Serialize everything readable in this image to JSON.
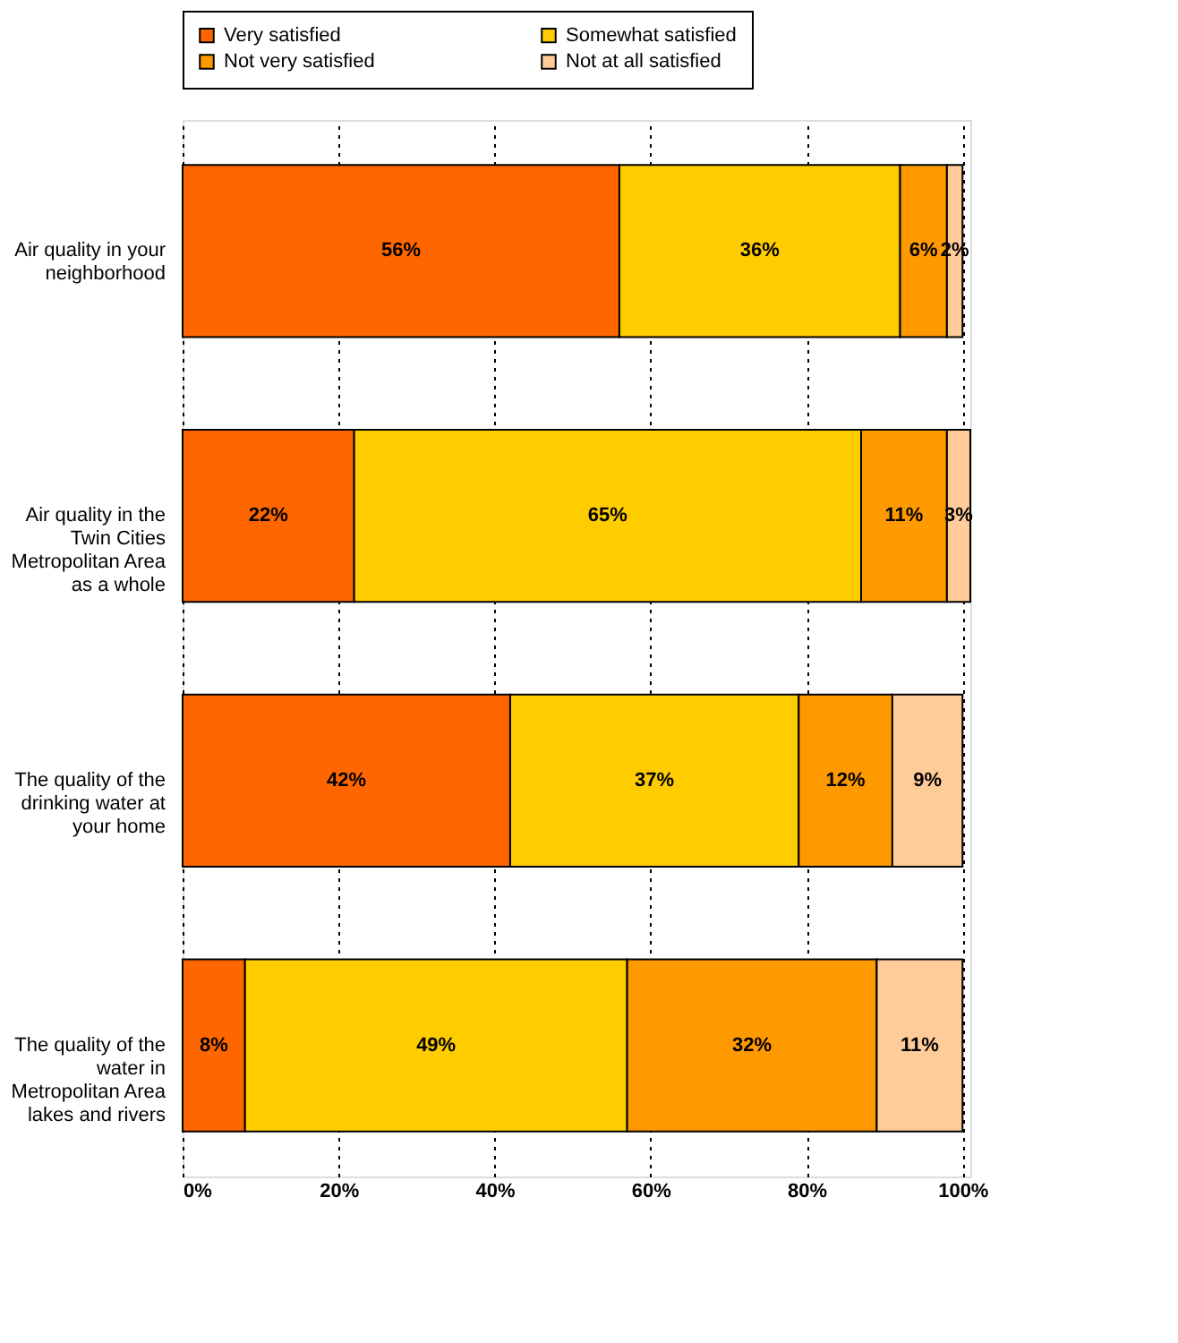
{
  "chart_data": {
    "type": "bar",
    "orientation": "horizontal",
    "stacked": true,
    "legend": "top",
    "grid": "x",
    "categories": [
      "Air quality in your neighborhood",
      "Air quality in the Twin Cities Metropolitan Area as a whole",
      "The quality of the drinking water at your home",
      "The quality of the water in Metropolitan Area lakes and rivers"
    ],
    "series": [
      {
        "name": "Very satisfied",
        "color": "#ff6600",
        "values": [
          56,
          22,
          42,
          8
        ],
        "value_labels": [
          "56%",
          "22%",
          "42%",
          "8%"
        ]
      },
      {
        "name": "Somewhat satisfied",
        "color": "#ffcc00",
        "values": [
          36,
          65,
          37,
          49
        ],
        "value_labels": [
          "36%",
          "65%",
          "37%",
          "49%"
        ]
      },
      {
        "name": "Not very satisfied",
        "color": "#ff9900",
        "values": [
          6,
          11,
          12,
          32
        ],
        "value_labels": [
          "6%",
          "11%",
          "12%",
          "32%"
        ]
      },
      {
        "name": "Not at all satisfied",
        "color": "#ffcc99",
        "values": [
          2,
          3,
          9,
          11
        ],
        "value_labels": [
          "2%",
          "3%",
          "9%",
          "11%"
        ]
      }
    ],
    "xlim": [
      0,
      101
    ],
    "xticks": [
      {
        "value": 0,
        "label": "0%"
      },
      {
        "value": 20,
        "label": "20%"
      },
      {
        "value": 40,
        "label": "40%"
      },
      {
        "value": 60,
        "label": "60%"
      },
      {
        "value": 80,
        "label": "80%"
      },
      {
        "value": 100,
        "label": "100%"
      }
    ]
  }
}
